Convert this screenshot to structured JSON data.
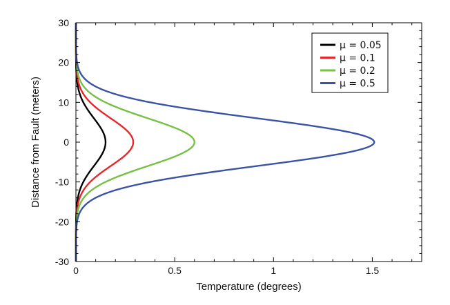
{
  "chart_data": {
    "type": "line",
    "xlabel": "Temperature (degrees)",
    "ylabel": "Distance from Fault (meters)",
    "xlim": [
      0,
      1.75
    ],
    "ylim": [
      -30,
      30
    ],
    "x_ticks": [
      0,
      0.5,
      1,
      1.5
    ],
    "x_tick_labels": [
      "0",
      "0.5",
      "1",
      "1.5"
    ],
    "y_ticks": [
      -30,
      -20,
      -10,
      0,
      10,
      20,
      30
    ],
    "y_tick_labels": [
      "-30",
      "-20",
      "-10",
      "0",
      "10",
      "20",
      "30"
    ],
    "grid": false,
    "legend_position": "top-right",
    "curve_model": "gaussian",
    "curve_y_range": [
      -30,
      30
    ],
    "series": [
      {
        "name": "μ = 0.05",
        "color": "#000000",
        "peak_temperature": 0.15,
        "peak_distance": 0,
        "width_sigma": 6
      },
      {
        "name": "μ = 0.1",
        "color": "#e8262a",
        "peak_temperature": 0.29,
        "peak_distance": 0,
        "width_sigma": 6
      },
      {
        "name": "μ = 0.2",
        "color": "#76c043",
        "peak_temperature": 0.6,
        "peak_distance": 0,
        "width_sigma": 6
      },
      {
        "name": "μ = 0.5",
        "color": "#3a53a4",
        "peak_temperature": 1.51,
        "peak_distance": 0,
        "width_sigma": 6
      }
    ]
  }
}
